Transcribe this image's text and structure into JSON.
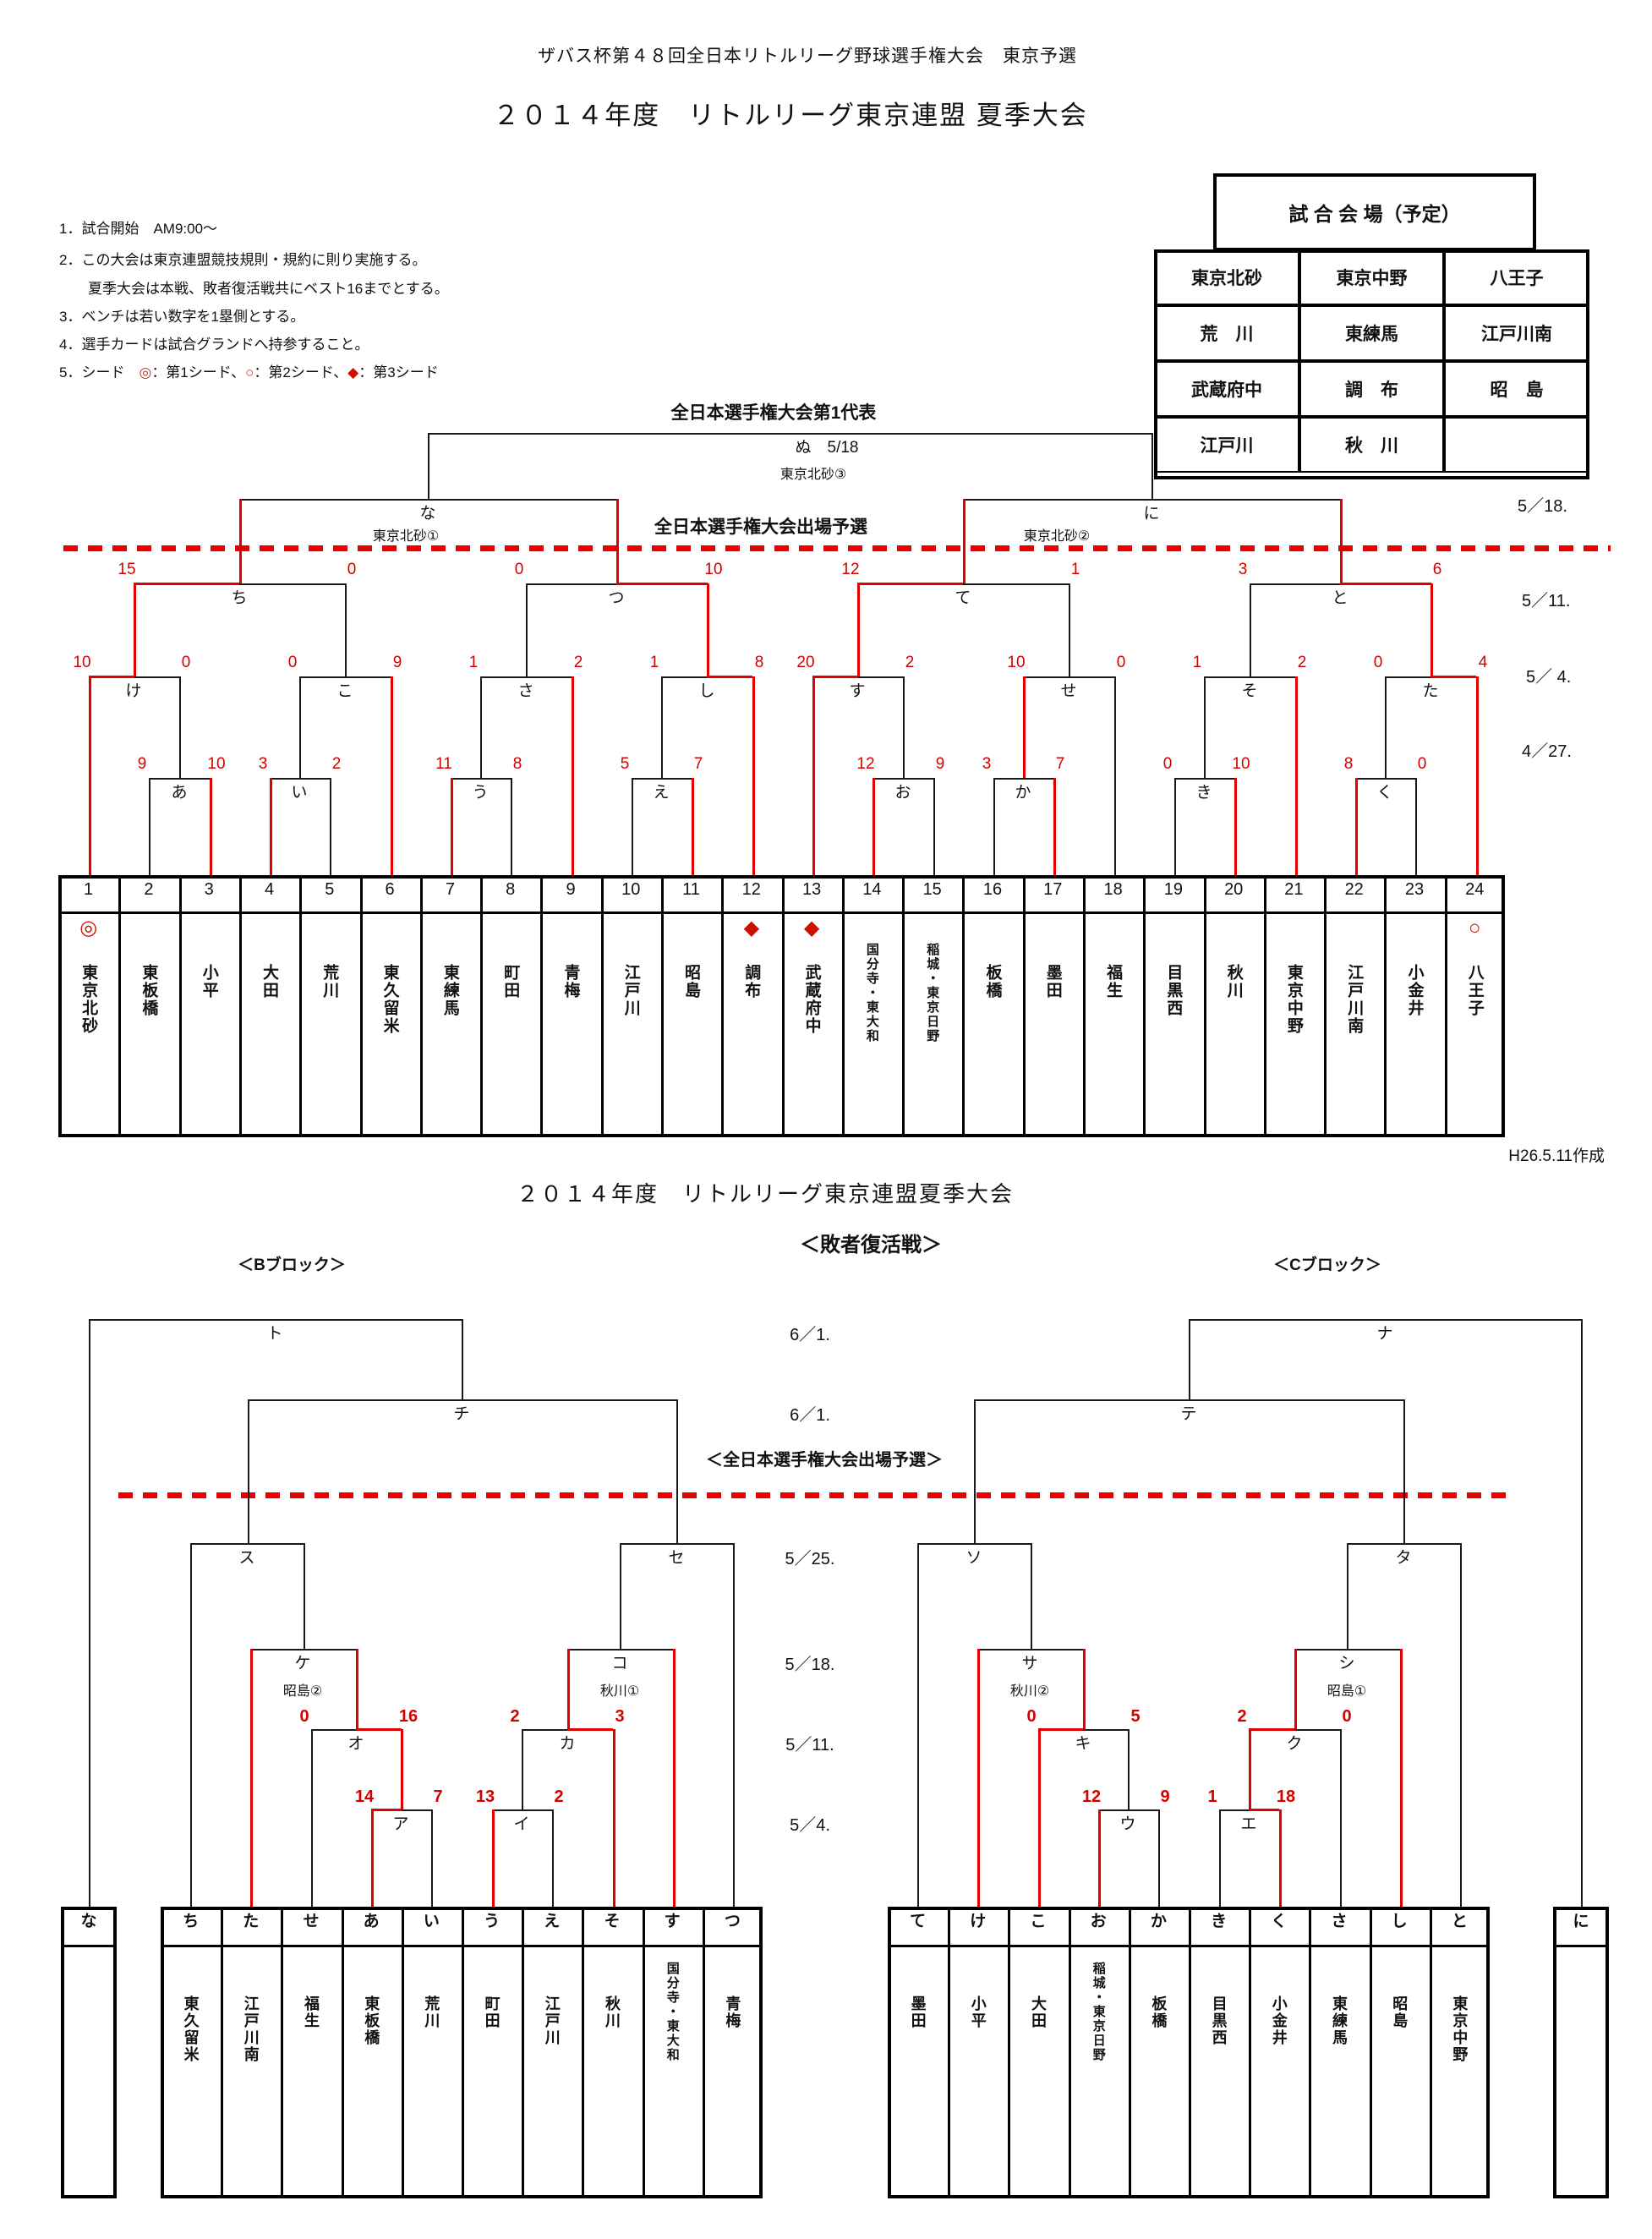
{
  "page": {
    "subtitle": "ザバス杯第４８回全日本リトルリーグ野球選手権大会　東京予選",
    "title": "２０１４年度　リトルリーグ東京連盟 夏季大会",
    "created_note": "H26.5.11作成"
  },
  "rules": {
    "line1": "1．試合開始　AM9:00～",
    "line2": "2．この大会は東京連盟競技規則・規約に則り実施する。",
    "line2b": "　　夏季大会は本戦、敗者復活戦共にベスト16までとする。",
    "line3": "3．ベンチは若い数字を1塁側とする。",
    "line4": "4．選手カードは試合グランドへ持参すること。",
    "line5_prefix": "5．シード　",
    "seed1_mark": "◎",
    "seed1_text": "：第1シード、",
    "seed2_mark": "○",
    "seed2_text": "：第2シード、",
    "seed3_mark": "◆",
    "seed3_text": "：第3シード"
  },
  "venue_table": {
    "title": "試 合 会 場（予定）",
    "rows": [
      [
        "東京北砂",
        "東京中野",
        "八王子"
      ],
      [
        "荒　川",
        "東練馬",
        "江戸川南"
      ],
      [
        "武蔵府中",
        "調　布",
        "昭　島"
      ],
      [
        "江戸川",
        "秋　川",
        ""
      ]
    ]
  },
  "main": {
    "rep_title": "全日本選手権大会第1代表",
    "qual_title": "全日本選手権大会出場予選",
    "final_label": "ぬ　5/18",
    "final_venue": "東京北砂③",
    "dates": [
      "5／18.",
      "5／11.",
      "5／ 4.",
      "4／27."
    ],
    "matches": {
      "な": {
        "label": "な",
        "venue": "東京北砂①"
      },
      "に": {
        "label": "に",
        "venue": "東京北砂②"
      },
      "ち": {
        "label": "ち",
        "score": [
          "15",
          "0"
        ]
      },
      "つ": {
        "label": "つ",
        "score": [
          "0",
          "10"
        ]
      },
      "て": {
        "label": "て",
        "score": [
          "12",
          "1"
        ]
      },
      "と": {
        "label": "と",
        "score": [
          "3",
          "6"
        ]
      },
      "け": {
        "label": "け",
        "score": [
          "10",
          "0"
        ]
      },
      "こ": {
        "label": "こ",
        "score": [
          "0",
          "9"
        ]
      },
      "さ": {
        "label": "さ",
        "score": [
          "1",
          "2"
        ]
      },
      "し": {
        "label": "し",
        "score": [
          "1",
          "8"
        ]
      },
      "す": {
        "label": "す",
        "score": [
          "20",
          "2"
        ]
      },
      "せ": {
        "label": "せ",
        "score": [
          "10",
          "0"
        ]
      },
      "そ": {
        "label": "そ",
        "score": [
          "1",
          "2"
        ]
      },
      "た": {
        "label": "た",
        "score": [
          "0",
          "4"
        ]
      },
      "あ": {
        "label": "あ",
        "score": [
          "9",
          "10"
        ]
      },
      "い": {
        "label": "い",
        "score": [
          "3",
          "2"
        ]
      },
      "う": {
        "label": "う",
        "score": [
          "11",
          "8"
        ]
      },
      "え": {
        "label": "え",
        "score": [
          "5",
          "7"
        ]
      },
      "お": {
        "label": "お",
        "score": [
          "12",
          "9"
        ]
      },
      "か": {
        "label": "か",
        "score": [
          "3",
          "7"
        ]
      },
      "き": {
        "label": "き",
        "score": [
          "0",
          "10"
        ]
      },
      "く": {
        "label": "く",
        "score": [
          "8",
          "0"
        ]
      }
    },
    "teams": [
      {
        "no": "1",
        "name": "東京北砂",
        "seed": "◎"
      },
      {
        "no": "2",
        "name": "東板橋",
        "seed": ""
      },
      {
        "no": "3",
        "name": "小平",
        "seed": ""
      },
      {
        "no": "4",
        "name": "大田",
        "seed": ""
      },
      {
        "no": "5",
        "name": "荒川",
        "seed": ""
      },
      {
        "no": "6",
        "name": "東久留米",
        "seed": ""
      },
      {
        "no": "7",
        "name": "東練馬",
        "seed": ""
      },
      {
        "no": "8",
        "name": "町田",
        "seed": ""
      },
      {
        "no": "9",
        "name": "青梅",
        "seed": ""
      },
      {
        "no": "10",
        "name": "江戸川",
        "seed": ""
      },
      {
        "no": "11",
        "name": "昭島",
        "seed": ""
      },
      {
        "no": "12",
        "name": "調布",
        "seed": "◆"
      },
      {
        "no": "13",
        "name": "武蔵府中",
        "seed": "◆"
      },
      {
        "no": "14",
        "name": "国分寺・東大和",
        "seed": ""
      },
      {
        "no": "15",
        "name": "稲城・東京日野",
        "seed": ""
      },
      {
        "no": "16",
        "name": "板橋",
        "seed": ""
      },
      {
        "no": "17",
        "name": "墨田",
        "seed": ""
      },
      {
        "no": "18",
        "name": "福生",
        "seed": ""
      },
      {
        "no": "19",
        "name": "目黒西",
        "seed": ""
      },
      {
        "no": "20",
        "name": "秋川",
        "seed": ""
      },
      {
        "no": "21",
        "name": "東京中野",
        "seed": ""
      },
      {
        "no": "22",
        "name": "江戸川南",
        "seed": ""
      },
      {
        "no": "23",
        "name": "小金井",
        "seed": ""
      },
      {
        "no": "24",
        "name": "八王子",
        "seed": "○"
      }
    ]
  },
  "revival": {
    "title": "２０１４年度　リトルリーグ東京連盟夏季大会",
    "heading": "＜敗者復活戦＞",
    "block_b": "＜Bブロック＞",
    "block_c": "＜Cブロック＞",
    "qual_title": "＜全日本選手権大会出場予選＞",
    "dates": [
      "6／1.",
      "6／1.",
      "5／25.",
      "5／18.",
      "5／11.",
      "5／4."
    ],
    "matches": {
      "ト": {
        "label": "ト"
      },
      "ナ": {
        "label": "ナ"
      },
      "チ": {
        "label": "チ"
      },
      "テ": {
        "label": "テ"
      },
      "ス": {
        "label": "ス"
      },
      "セ": {
        "label": "セ"
      },
      "ソ": {
        "label": "ソ"
      },
      "タ": {
        "label": "タ"
      },
      "ケ": {
        "label": "ケ",
        "venue": "昭島②"
      },
      "コ": {
        "label": "コ",
        "venue": "秋川①"
      },
      "サ": {
        "label": "サ",
        "venue": "秋川②"
      },
      "シ": {
        "label": "シ",
        "venue": "昭島①"
      },
      "オ": {
        "label": "オ",
        "score": [
          "0",
          "16"
        ]
      },
      "カ": {
        "label": "カ",
        "score": [
          "2",
          "3"
        ]
      },
      "キ": {
        "label": "キ",
        "score": [
          "0",
          "5"
        ]
      },
      "ク": {
        "label": "ク",
        "score": [
          "2",
          "0"
        ]
      },
      "ア": {
        "label": "ア",
        "score": [
          "14",
          "7"
        ]
      },
      "イ": {
        "label": "イ",
        "score": [
          "13",
          "2"
        ]
      },
      "ウ": {
        "label": "ウ",
        "score": [
          "12",
          "9"
        ]
      },
      "エ": {
        "label": "エ",
        "score": [
          "1",
          "18"
        ]
      }
    },
    "b_columns": [
      {
        "label": "な",
        "name": ""
      },
      {
        "label": "ち",
        "name": "東久留米"
      },
      {
        "label": "た",
        "name": "江戸川南"
      },
      {
        "label": "せ",
        "name": "福生"
      },
      {
        "label": "あ",
        "name": "東板橋"
      },
      {
        "label": "い",
        "name": "荒川"
      },
      {
        "label": "う",
        "name": "町田"
      },
      {
        "label": "え",
        "name": "江戸川"
      },
      {
        "label": "そ",
        "name": "秋川"
      },
      {
        "label": "す",
        "name": "国分寺・東大和"
      },
      {
        "label": "つ",
        "name": "青梅"
      }
    ],
    "c_columns": [
      {
        "label": "て",
        "name": "墨田"
      },
      {
        "label": "け",
        "name": "小平"
      },
      {
        "label": "こ",
        "name": "大田"
      },
      {
        "label": "お",
        "name": "稲城・東京日野"
      },
      {
        "label": "か",
        "name": "板橋"
      },
      {
        "label": "き",
        "name": "目黒西"
      },
      {
        "label": "く",
        "name": "小金井"
      },
      {
        "label": "さ",
        "name": "東練馬"
      },
      {
        "label": "し",
        "name": "昭島"
      },
      {
        "label": "と",
        "name": "東京中野"
      },
      {
        "label": "に",
        "name": ""
      }
    ]
  }
}
